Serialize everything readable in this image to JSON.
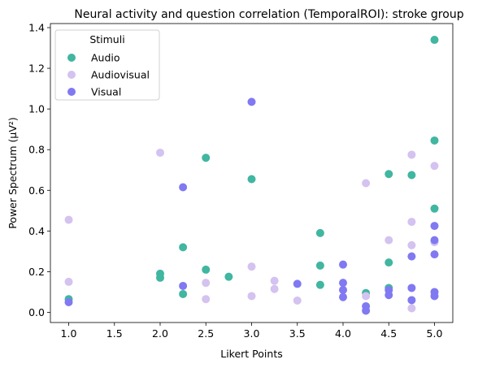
{
  "chart_data": {
    "type": "scatter",
    "title": "Neural activity and question correlation (TemporalROI): stroke group",
    "xlabel": "Likert Points",
    "ylabel": "Power Spectrum (µV²)",
    "xlim": [
      0.8,
      5.2
    ],
    "ylim": [
      -0.05,
      1.42
    ],
    "xticks": [
      "1.0",
      "1.5",
      "2.0",
      "2.5",
      "3.0",
      "3.5",
      "4.0",
      "4.5",
      "5.0"
    ],
    "yticks": [
      "0.0",
      "0.2",
      "0.4",
      "0.6",
      "0.8",
      "1.0",
      "1.2",
      "1.4"
    ],
    "grid": false,
    "legend": {
      "title": "Stimuli",
      "placement": "top-left"
    },
    "series": [
      {
        "name": "Audio",
        "color": "#41b6a0",
        "points": [
          [
            1.0,
            0.065
          ],
          [
            2.0,
            0.19
          ],
          [
            2.0,
            0.17
          ],
          [
            2.25,
            0.32
          ],
          [
            2.25,
            0.09
          ],
          [
            2.5,
            0.76
          ],
          [
            2.5,
            0.21
          ],
          [
            2.75,
            0.175
          ],
          [
            3.0,
            0.655
          ],
          [
            3.75,
            0.39
          ],
          [
            3.75,
            0.23
          ],
          [
            3.75,
            0.135
          ],
          [
            4.25,
            0.095
          ],
          [
            4.5,
            0.68
          ],
          [
            4.5,
            0.245
          ],
          [
            4.5,
            0.12
          ],
          [
            4.75,
            0.675
          ],
          [
            5.0,
            1.34
          ],
          [
            5.0,
            0.845
          ],
          [
            5.0,
            0.51
          ]
        ]
      },
      {
        "name": "Audiovisual",
        "color": "#d4c2f0",
        "points": [
          [
            1.0,
            0.455
          ],
          [
            1.0,
            0.15
          ],
          [
            2.0,
            0.785
          ],
          [
            2.5,
            0.145
          ],
          [
            2.5,
            0.065
          ],
          [
            3.0,
            0.225
          ],
          [
            3.0,
            0.08
          ],
          [
            3.25,
            0.155
          ],
          [
            3.25,
            0.115
          ],
          [
            3.5,
            0.058
          ],
          [
            4.25,
            0.635
          ],
          [
            4.25,
            0.08
          ],
          [
            4.5,
            0.355
          ],
          [
            4.75,
            0.775
          ],
          [
            4.75,
            0.445
          ],
          [
            4.75,
            0.33
          ],
          [
            4.75,
            0.02
          ],
          [
            5.0,
            0.72
          ],
          [
            5.0,
            0.345
          ]
        ]
      },
      {
        "name": "Visual",
        "color": "#8079f2",
        "points": [
          [
            1.0,
            0.05
          ],
          [
            2.25,
            0.615
          ],
          [
            2.25,
            0.13
          ],
          [
            3.0,
            1.035
          ],
          [
            3.5,
            0.14
          ],
          [
            4.0,
            0.235
          ],
          [
            4.0,
            0.145
          ],
          [
            4.0,
            0.11
          ],
          [
            4.0,
            0.075
          ],
          [
            4.25,
            0.03
          ],
          [
            4.25,
            0.008
          ],
          [
            4.5,
            0.11
          ],
          [
            4.5,
            0.085
          ],
          [
            4.75,
            0.275
          ],
          [
            4.75,
            0.12
          ],
          [
            4.75,
            0.06
          ],
          [
            5.0,
            0.425
          ],
          [
            5.0,
            0.355
          ],
          [
            5.0,
            0.285
          ],
          [
            5.0,
            0.1
          ],
          [
            5.0,
            0.08
          ]
        ]
      }
    ]
  }
}
